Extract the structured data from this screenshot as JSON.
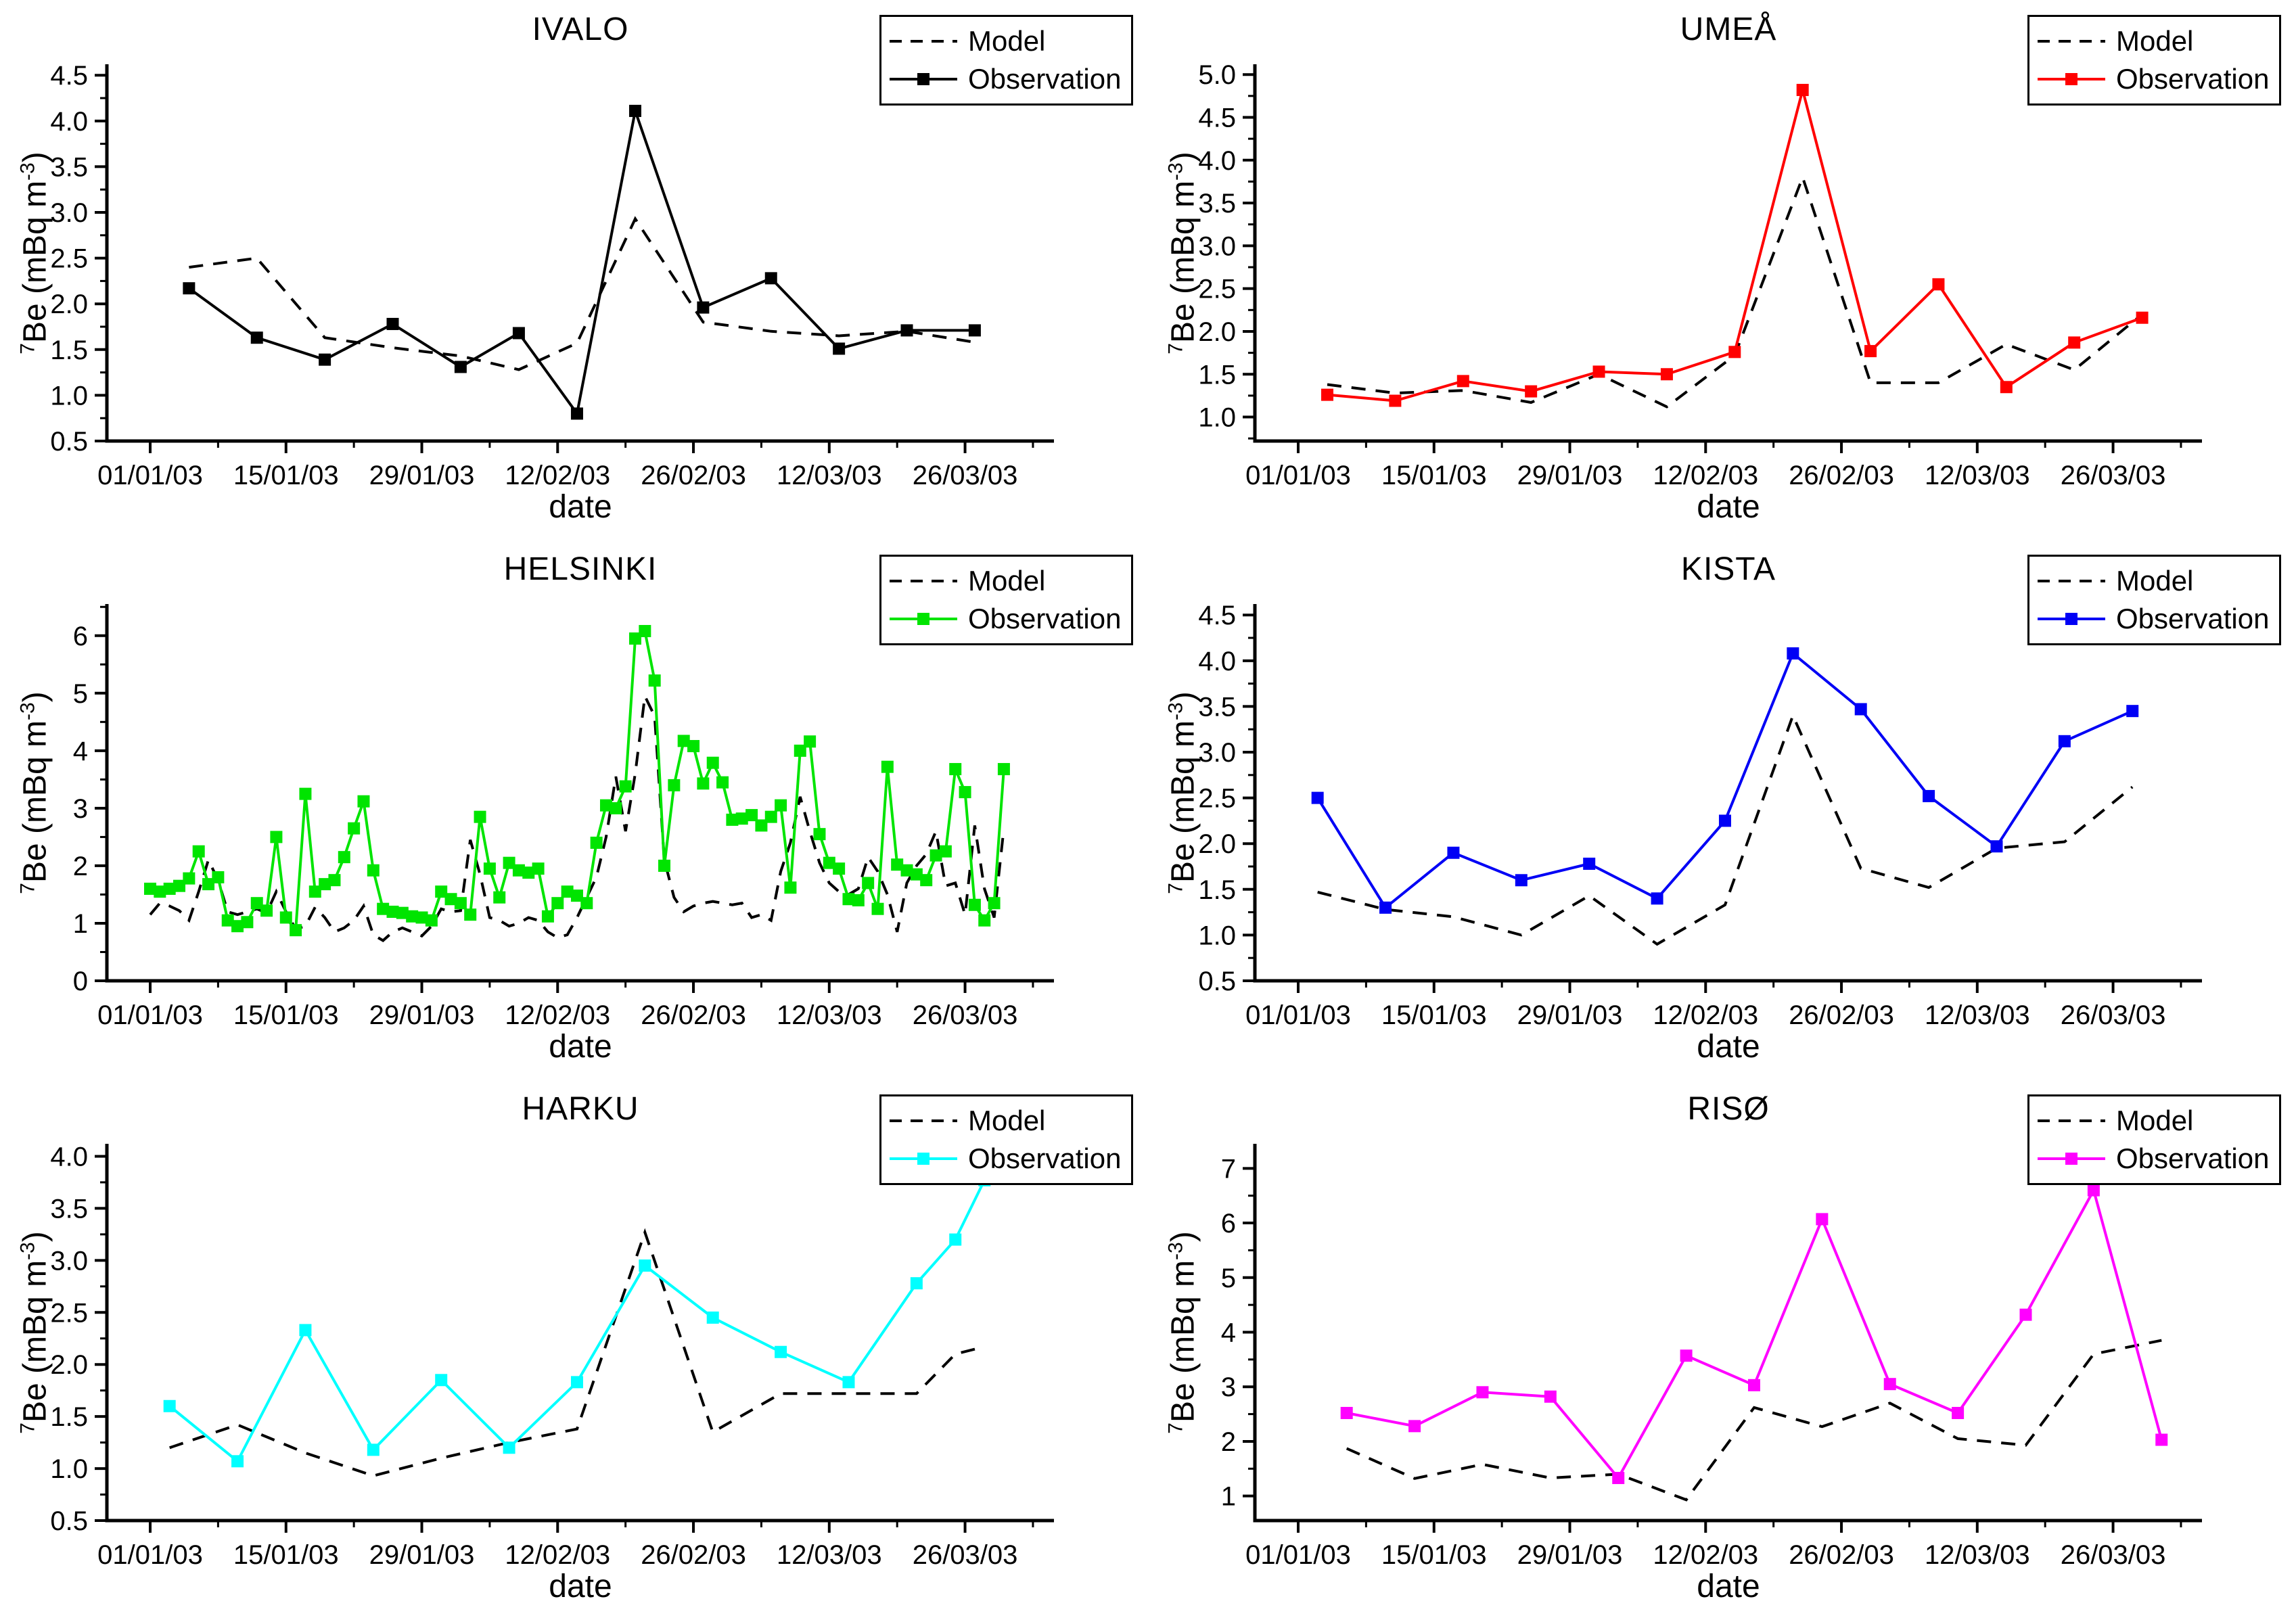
{
  "figure": {
    "xlabel": "date",
    "ylabel": {
      "isotope_sup": "7",
      "main": "Be (mBq m",
      "exponent_sup": "-3",
      "close": ")"
    },
    "x_tick_labels": [
      "01/01/03",
      "15/01/03",
      "29/01/03",
      "12/02/03",
      "26/02/03",
      "12/03/03",
      "26/03/03"
    ],
    "x_tick_days": [
      0,
      14,
      28,
      42,
      56,
      70,
      84
    ],
    "legend": {
      "model_label": "Model",
      "observation_label": "Observation"
    },
    "axis_color": "#000000",
    "model_color": "#000000"
  },
  "chart_data": [
    {
      "type": "line",
      "title": "IVALO",
      "observation_color": "#000000",
      "ylim": [
        0.5,
        4.62
      ],
      "yticks": [
        0.5,
        1.0,
        1.5,
        2.0,
        2.5,
        3.0,
        3.5,
        4.0,
        4.5
      ],
      "ytick_labels": [
        "0.5",
        "1.0",
        "1.5",
        "2.0",
        "2.5",
        "3.0",
        "3.5",
        "4.0",
        "4.5"
      ],
      "series": [
        {
          "role": "model",
          "style": "dashed",
          "x_days": [
            4,
            11,
            18,
            25,
            32,
            38,
            44,
            50,
            57,
            64,
            71,
            78,
            85
          ],
          "values": [
            2.4,
            2.5,
            1.63,
            1.52,
            1.43,
            1.28,
            1.57,
            2.93,
            1.8,
            1.7,
            1.65,
            1.7,
            1.58
          ]
        },
        {
          "role": "observation",
          "style": "solid-marker",
          "x_days": [
            4,
            11,
            18,
            25,
            32,
            38,
            44,
            50,
            57,
            64,
            71,
            78,
            85
          ],
          "values": [
            2.17,
            1.63,
            1.39,
            1.78,
            1.31,
            1.68,
            0.8,
            4.11,
            1.96,
            2.28,
            1.51,
            1.71,
            1.71
          ]
        }
      ]
    },
    {
      "type": "line",
      "title": "UMEÅ",
      "observation_color": "#FF0000",
      "ylim": [
        0.72,
        5.12
      ],
      "yticks": [
        1.0,
        1.5,
        2.0,
        2.5,
        3.0,
        3.5,
        4.0,
        4.5,
        5.0
      ],
      "ytick_labels": [
        "1.0",
        "1.5",
        "2.0",
        "2.5",
        "3.0",
        "3.5",
        "4.0",
        "4.5",
        "5.0"
      ],
      "series": [
        {
          "role": "model",
          "style": "dashed",
          "x_days": [
            3,
            10,
            17,
            24,
            31,
            38,
            45,
            52,
            59,
            66,
            73,
            80,
            87
          ],
          "values": [
            1.38,
            1.28,
            1.31,
            1.17,
            1.5,
            1.12,
            1.72,
            3.8,
            1.4,
            1.4,
            1.85,
            1.55,
            2.2
          ]
        },
        {
          "role": "observation",
          "style": "solid-marker",
          "x_days": [
            3,
            10,
            17,
            24,
            31,
            38,
            45,
            52,
            59,
            66,
            73,
            80,
            87
          ],
          "values": [
            1.26,
            1.19,
            1.42,
            1.3,
            1.53,
            1.5,
            1.76,
            4.82,
            1.77,
            2.55,
            1.35,
            1.87,
            2.16
          ]
        }
      ]
    },
    {
      "type": "line",
      "title": "HELSINKI",
      "observation_color": "#00E400",
      "ylim": [
        0,
        6.55
      ],
      "yticks": [
        0,
        1,
        2,
        3,
        4,
        5,
        6
      ],
      "ytick_labels": [
        "0",
        "1",
        "2",
        "3",
        "4",
        "5",
        "6"
      ],
      "series": [
        {
          "role": "model",
          "style": "dashed",
          "x_days": [
            0,
            1,
            2,
            3,
            4,
            5,
            6,
            7,
            8,
            9,
            10,
            11,
            12,
            13,
            14,
            15,
            16,
            17,
            18,
            19,
            20,
            21,
            22,
            23,
            24,
            25,
            26,
            27,
            28,
            29,
            30,
            31,
            32,
            33,
            34,
            35,
            36,
            37,
            38,
            39,
            40,
            41,
            42,
            43,
            44,
            45,
            46,
            47,
            48,
            49,
            50,
            51,
            52,
            53,
            54,
            55,
            56,
            57,
            58,
            59,
            60,
            61,
            62,
            63,
            64,
            65,
            66,
            67,
            68,
            69,
            70,
            71,
            72,
            73,
            74,
            75,
            76,
            77,
            78,
            79,
            80,
            81,
            82,
            83,
            84,
            85,
            86,
            87,
            88
          ],
          "values": [
            1.15,
            1.35,
            1.3,
            1.22,
            1.05,
            1.55,
            2.1,
            1.75,
            1.2,
            1.15,
            1.2,
            1.25,
            1.18,
            1.55,
            1.2,
            0.9,
            0.95,
            1.28,
            1.1,
            0.85,
            0.92,
            1.05,
            1.3,
            0.8,
            0.7,
            0.85,
            0.92,
            0.85,
            0.78,
            0.95,
            1.25,
            1.2,
            1.22,
            2.45,
            1.85,
            1.1,
            1.05,
            0.95,
            1.0,
            1.1,
            1.05,
            0.85,
            0.75,
            0.8,
            1.1,
            1.45,
            1.8,
            2.5,
            3.55,
            2.6,
            3.6,
            4.95,
            4.6,
            2.1,
            1.45,
            1.2,
            1.3,
            1.35,
            1.38,
            1.35,
            1.32,
            1.35,
            1.1,
            1.15,
            1.05,
            1.9,
            2.4,
            3.2,
            2.6,
            2.05,
            1.7,
            1.55,
            1.5,
            1.6,
            2.15,
            1.9,
            1.5,
            0.85,
            1.7,
            2.0,
            2.2,
            2.6,
            1.65,
            1.7,
            1.15,
            2.7,
            1.6,
            1.1,
            2.65
          ]
        },
        {
          "role": "observation",
          "style": "solid-marker",
          "x_days": [
            0,
            1,
            2,
            3,
            4,
            5,
            6,
            7,
            8,
            9,
            10,
            11,
            12,
            13,
            14,
            15,
            16,
            17,
            18,
            19,
            20,
            21,
            22,
            23,
            24,
            25,
            26,
            27,
            28,
            29,
            30,
            31,
            32,
            33,
            34,
            35,
            36,
            37,
            38,
            39,
            40,
            41,
            42,
            43,
            44,
            45,
            46,
            47,
            48,
            49,
            50,
            51,
            52,
            53,
            54,
            55,
            56,
            57,
            58,
            59,
            60,
            61,
            62,
            63,
            64,
            65,
            66,
            67,
            68,
            69,
            70,
            71,
            72,
            73,
            74,
            75,
            76,
            77,
            78,
            79,
            80,
            81,
            82,
            83,
            84,
            85,
            86,
            87,
            88
          ],
          "values": [
            1.6,
            1.55,
            1.6,
            1.65,
            1.78,
            2.25,
            1.68,
            1.8,
            1.05,
            0.95,
            1.02,
            1.35,
            1.22,
            2.5,
            1.1,
            0.88,
            3.25,
            1.55,
            1.68,
            1.75,
            2.15,
            2.65,
            3.12,
            1.92,
            1.25,
            1.2,
            1.18,
            1.12,
            1.1,
            1.05,
            1.55,
            1.42,
            1.35,
            1.15,
            2.85,
            1.95,
            1.45,
            2.05,
            1.92,
            1.88,
            1.95,
            1.12,
            1.35,
            1.55,
            1.48,
            1.35,
            2.4,
            3.05,
            3.0,
            3.38,
            5.95,
            6.08,
            5.22,
            2.0,
            3.4,
            4.17,
            4.08,
            3.43,
            3.79,
            3.45,
            2.8,
            2.82,
            2.88,
            2.7,
            2.85,
            3.05,
            1.62,
            4.0,
            4.16,
            2.55,
            2.05,
            1.95,
            1.42,
            1.4,
            1.7,
            1.25,
            3.72,
            2.02,
            1.92,
            1.85,
            1.75,
            2.18,
            2.25,
            3.68,
            3.28,
            1.32,
            1.05,
            1.35,
            3.68
          ]
        }
      ]
    },
    {
      "type": "line",
      "title": "KISTA",
      "observation_color": "#0000F5",
      "ylim": [
        0.5,
        4.62
      ],
      "yticks": [
        0.5,
        1.0,
        1.5,
        2.0,
        2.5,
        3.0,
        3.5,
        4.0,
        4.5
      ],
      "ytick_labels": [
        "0.5",
        "1.0",
        "1.5",
        "2.0",
        "2.5",
        "3.0",
        "3.5",
        "4.0",
        "4.5"
      ],
      "series": [
        {
          "role": "model",
          "style": "dashed",
          "x_days": [
            2,
            9,
            16,
            23,
            30,
            37,
            44,
            51,
            58,
            65,
            72,
            79,
            86
          ],
          "values": [
            1.47,
            1.28,
            1.2,
            1.0,
            1.43,
            0.9,
            1.33,
            3.4,
            1.73,
            1.52,
            1.95,
            2.02,
            2.62
          ]
        },
        {
          "role": "observation",
          "style": "solid-marker",
          "x_days": [
            2,
            9,
            16,
            23,
            30,
            37,
            44,
            51,
            58,
            65,
            72,
            79,
            86
          ],
          "values": [
            2.5,
            1.3,
            1.9,
            1.6,
            1.78,
            1.4,
            2.25,
            4.08,
            3.47,
            2.52,
            1.97,
            3.12,
            3.45
          ]
        }
      ]
    },
    {
      "type": "line",
      "title": "HARKU",
      "observation_color": "#00FFFF",
      "ylim": [
        0.5,
        4.12
      ],
      "yticks": [
        0.5,
        1.0,
        1.5,
        2.0,
        2.5,
        3.0,
        3.5,
        4.0
      ],
      "ytick_labels": [
        "0.5",
        "1.0",
        "1.5",
        "2.0",
        "2.5",
        "3.0",
        "3.5",
        "4.0"
      ],
      "series": [
        {
          "role": "model",
          "style": "dashed",
          "x_days": [
            2,
            9,
            16,
            23,
            30,
            37,
            44,
            51,
            58,
            65,
            72,
            79,
            83,
            86
          ],
          "values": [
            1.2,
            1.42,
            1.15,
            0.93,
            1.1,
            1.25,
            1.38,
            3.27,
            1.35,
            1.72,
            1.72,
            1.72,
            2.1,
            2.17
          ]
        },
        {
          "role": "observation",
          "style": "solid-marker",
          "x_days": [
            2,
            9,
            16,
            23,
            30,
            37,
            44,
            51,
            58,
            65,
            72,
            79,
            83,
            86
          ],
          "values": [
            1.6,
            1.07,
            2.33,
            1.18,
            1.85,
            1.2,
            1.83,
            2.95,
            2.45,
            2.12,
            1.83,
            2.78,
            3.2,
            3.77
          ]
        }
      ]
    },
    {
      "type": "line",
      "title": "RISØ",
      "observation_color": "#FF00FF",
      "ylim": [
        0.55,
        7.45
      ],
      "yticks": [
        1,
        2,
        3,
        4,
        5,
        6,
        7
      ],
      "ytick_labels": [
        "1",
        "2",
        "3",
        "4",
        "5",
        "6",
        "7"
      ],
      "series": [
        {
          "role": "model",
          "style": "dashed",
          "x_days": [
            5,
            12,
            19,
            26,
            33,
            40,
            47,
            54,
            61,
            68,
            75,
            82,
            89
          ],
          "values": [
            1.87,
            1.32,
            1.58,
            1.33,
            1.4,
            0.93,
            2.62,
            2.27,
            2.7,
            2.05,
            1.93,
            3.6,
            3.85
          ]
        },
        {
          "role": "observation",
          "style": "solid-marker",
          "x_days": [
            5,
            12,
            19,
            26,
            33,
            40,
            47,
            54,
            61,
            68,
            75,
            82,
            89
          ],
          "values": [
            2.52,
            2.28,
            2.9,
            2.82,
            1.33,
            3.57,
            3.03,
            6.07,
            3.05,
            2.52,
            4.32,
            6.6,
            2.03
          ]
        }
      ]
    }
  ]
}
